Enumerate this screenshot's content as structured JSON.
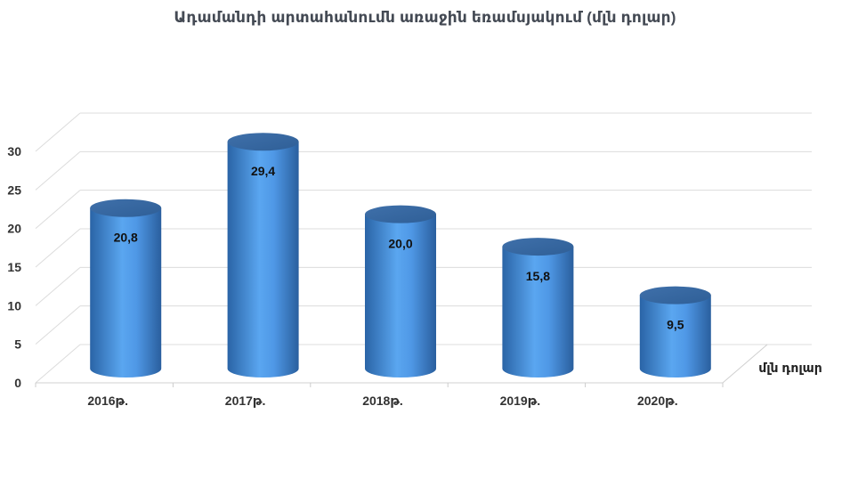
{
  "chart_data": {
    "type": "bar",
    "style": "3d-cylinder",
    "title": "Ադամանդի արտահանումն առաջին եռամսյակում (մլն դոլար)",
    "categories": [
      "2016թ.",
      "2017թ.",
      "2018թ.",
      "2019թ.",
      "2020թ."
    ],
    "series": [
      {
        "name": "մլն դոլար",
        "values": [
          20.8,
          29.4,
          20.0,
          15.8,
          9.5
        ],
        "data_labels": [
          "20,8",
          "29,4",
          "20,0",
          "15,8",
          "9,5"
        ]
      }
    ],
    "ylim": [
      0,
      30
    ],
    "yticks": [
      "0",
      "5",
      "10",
      "15",
      "20",
      "25",
      "30"
    ],
    "grid": true,
    "legend": "none",
    "colors": {
      "bar_light": "#5fa8f0",
      "bar_dark": "#2f6fb0",
      "bar_top": "#3d6da6",
      "grid": "#d9d9d9"
    }
  }
}
